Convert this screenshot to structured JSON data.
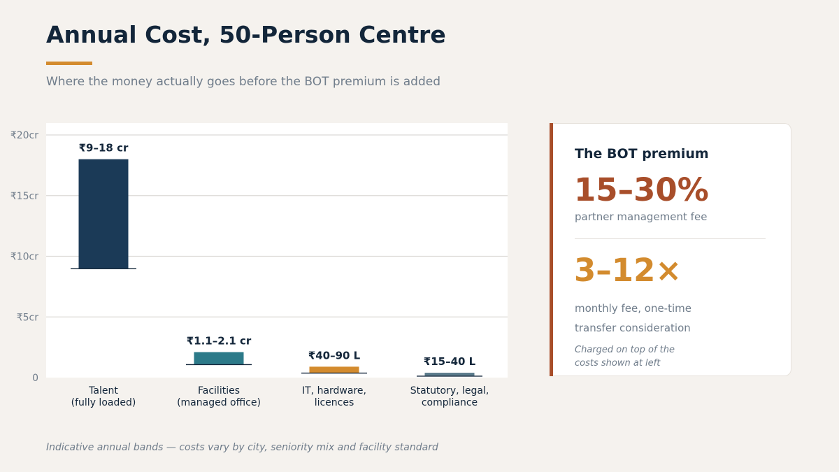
{
  "header": {
    "title": "Annual Cost, 50-Person Centre",
    "subtitle": "Where the money actually goes before the BOT premium is added"
  },
  "chart_data": {
    "type": "bar",
    "categories": [
      [
        "Talent",
        "(fully loaded)"
      ],
      [
        "Facilities",
        "(managed office)"
      ],
      [
        "IT, hardware,",
        "licences"
      ],
      [
        "Statutory, legal,",
        "compliance"
      ]
    ],
    "ranges_cr": [
      [
        9,
        18
      ],
      [
        1.1,
        2.1
      ],
      [
        0.4,
        0.9
      ],
      [
        0.15,
        0.4
      ]
    ],
    "data_labels": [
      "₹9–18 cr",
      "₹1.1–2.1 cr",
      "₹40–90 L",
      "₹15–40 L"
    ],
    "ylim": [
      0,
      20
    ],
    "yticks": [
      0,
      5,
      10,
      15,
      20
    ],
    "ytick_labels": [
      "0",
      "₹5cr",
      "₹10cr",
      "₹15cr",
      "₹20cr"
    ],
    "grid": true,
    "colors": [
      "#1b3a57",
      "#2c7a89",
      "#d38b2e",
      "#5b7b8c"
    ]
  },
  "premium_card": {
    "heading": "The BOT premium",
    "stat1": "15–30%",
    "stat1_caption": "partner management fee",
    "stat2": "3–12×",
    "stat2_caption": "monthly fee, one-time\ntransfer consideration",
    "note": "Charged on top of the\ncosts shown at left"
  },
  "footnote": "Indicative annual bands — costs vary by city, seniority mix and facility standard"
}
